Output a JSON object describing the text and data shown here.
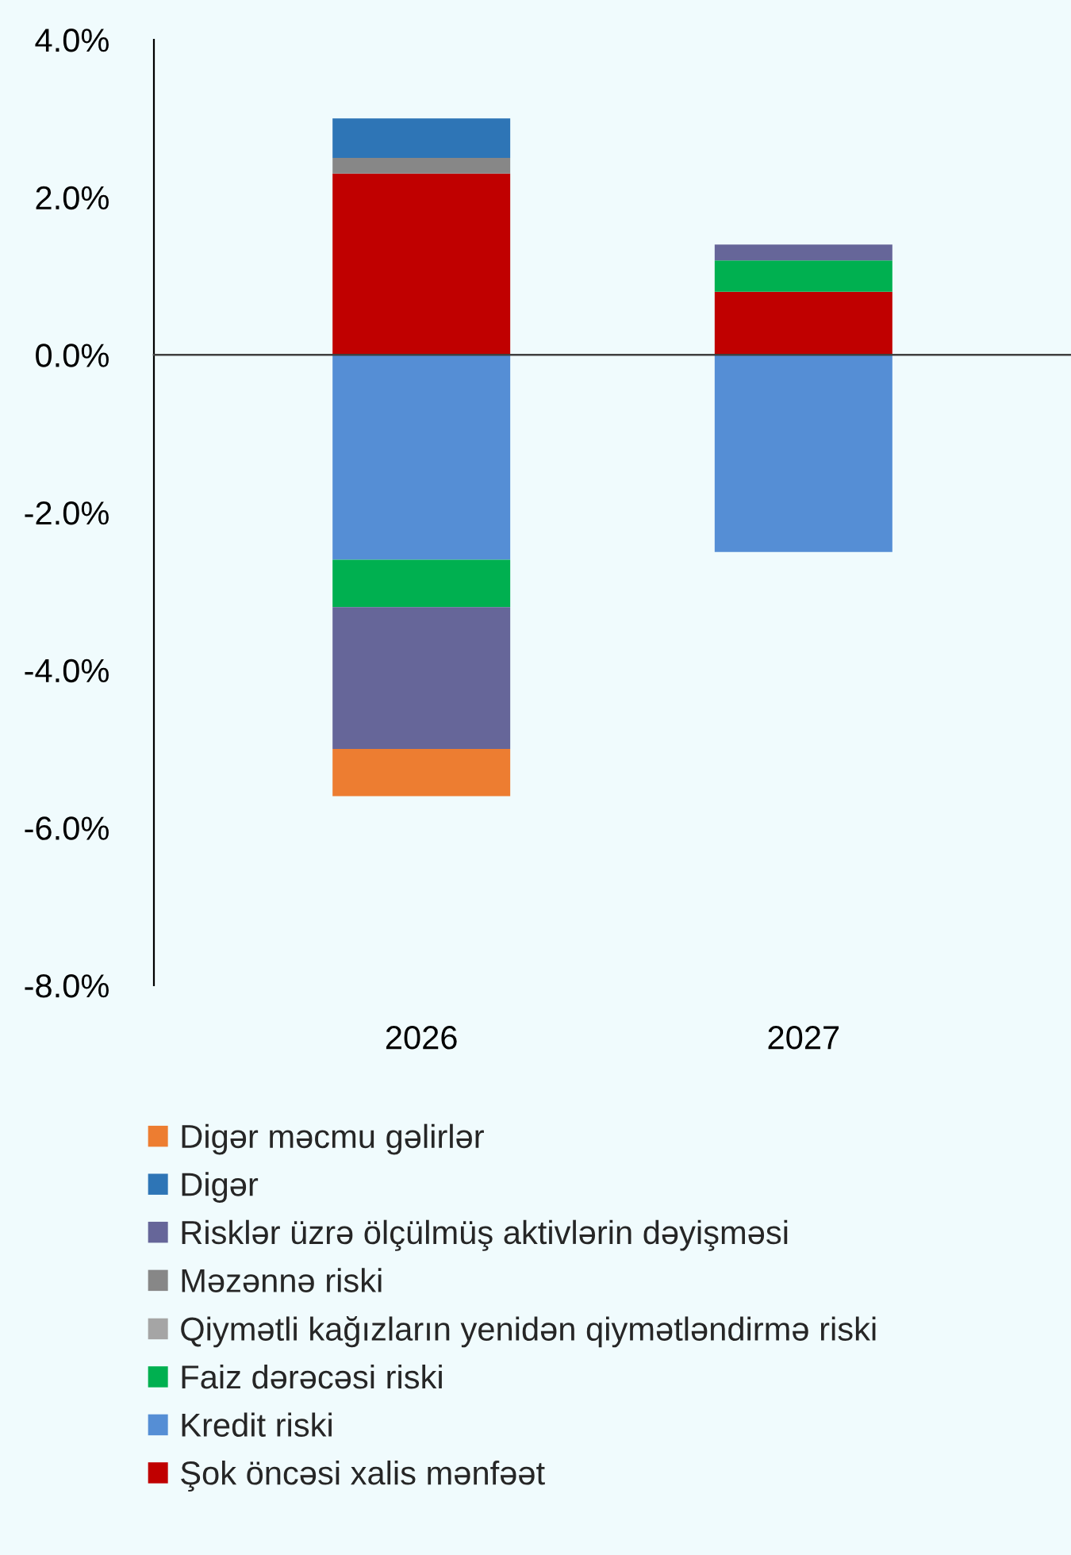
{
  "chart_data": {
    "type": "bar",
    "stacked": true,
    "categories": [
      "2026",
      "2027"
    ],
    "series": [
      {
        "name": "Şok öncəsi xalis mənfəət",
        "color": "#c00000",
        "values": [
          2.3,
          0.8
        ]
      },
      {
        "name": "Kredit riski",
        "color": "#558ed5",
        "values": [
          -2.6,
          -2.5
        ]
      },
      {
        "name": "Faiz dərəcəsi riski",
        "color": "#00b050",
        "values": [
          -0.6,
          0.4
        ]
      },
      {
        "name": "Qiymətli kağızların yenidən qiymətləndirmə riski",
        "color": "#a5a5a5",
        "values": [
          null,
          null
        ]
      },
      {
        "name": "Məzənnə riski",
        "color": "#878787",
        "values": [
          0.2,
          null
        ]
      },
      {
        "name": "Risklər üzrə ölçülmüş aktivlərin dəyişməsi",
        "color": "#666699",
        "values": [
          -1.8,
          0.2
        ]
      },
      {
        "name": "Digər",
        "color": "#2e75b6",
        "values": [
          0.5,
          null
        ]
      },
      {
        "name": "Digər məcmu gəlirlər",
        "color": "#ed7d31",
        "values": [
          -0.6,
          null
        ]
      }
    ],
    "ylim": [
      -8,
      4
    ],
    "yticks": [
      {
        "value": -8,
        "label": "-8.0%"
      },
      {
        "value": -6,
        "label": "-6.0%"
      },
      {
        "value": -4,
        "label": "-4.0%"
      },
      {
        "value": -2,
        "label": "-2.0%"
      },
      {
        "value": 0,
        "label": "0.0%"
      },
      {
        "value": 2,
        "label": "2.0%"
      },
      {
        "value": 4,
        "label": "4.0%"
      }
    ],
    "legend": "bottom"
  }
}
